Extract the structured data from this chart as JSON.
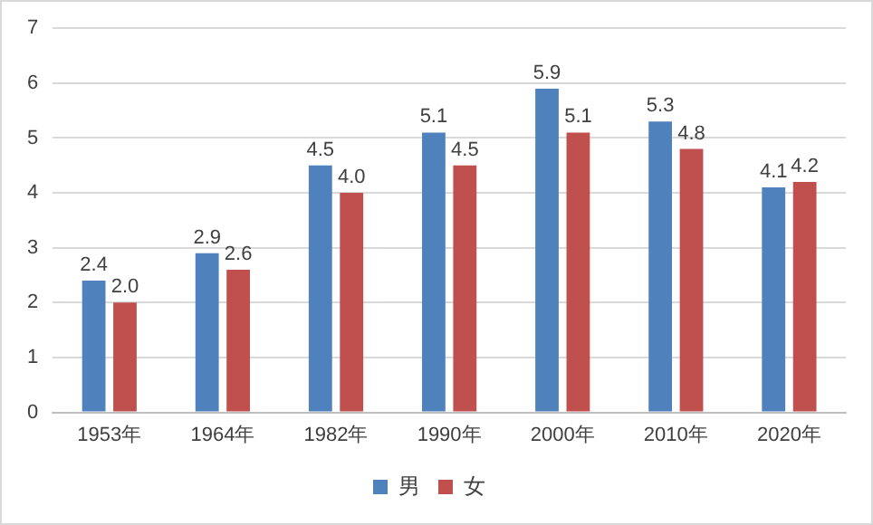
{
  "chart_data": {
    "type": "bar",
    "categories": [
      "1953年",
      "1964年",
      "1982年",
      "1990年",
      "2000年",
      "2010年",
      "2020年"
    ],
    "series": [
      {
        "name": "男",
        "color": "#4f81bd",
        "values": [
          2.4,
          2.9,
          4.5,
          5.1,
          5.9,
          5.3,
          4.1
        ],
        "value_labels": [
          "2.4",
          "2.9",
          "4.5",
          "5.1",
          "5.9",
          "5.3",
          "4.1"
        ]
      },
      {
        "name": "女",
        "color": "#c0504d",
        "values": [
          2.0,
          2.6,
          4.0,
          4.5,
          5.1,
          4.8,
          4.2
        ],
        "value_labels": [
          "2.0",
          "2.6",
          "4.0",
          "4.5",
          "5.1",
          "4.8",
          "4.2"
        ]
      }
    ],
    "ylim": [
      0,
      7
    ],
    "yticks": [
      0,
      1,
      2,
      3,
      4,
      5,
      6,
      7
    ],
    "grid": "y",
    "legend": "bottom"
  }
}
